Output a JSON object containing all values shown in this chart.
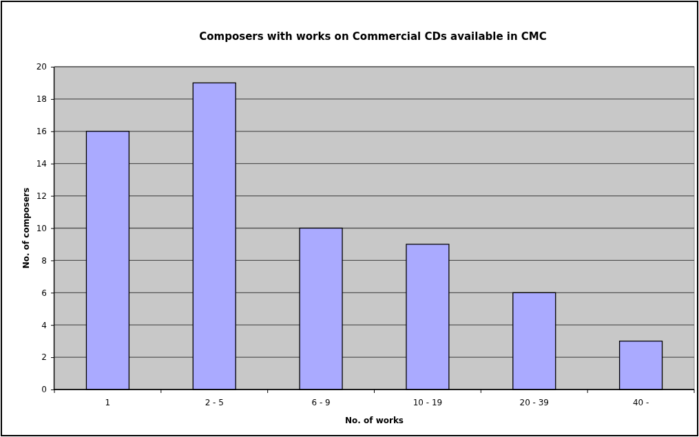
{
  "chart_data": {
    "type": "bar",
    "title": "Composers with works on Commercial CDs available in CMC",
    "xlabel": "No. of works",
    "ylabel": "No. of composers",
    "categories": [
      "1",
      "2 - 5",
      "6 - 9",
      "10 - 19",
      "20 - 39",
      "40 -"
    ],
    "values": [
      16,
      19,
      10,
      9,
      6,
      3
    ],
    "color": "#aaaaff",
    "ylim": [
      0,
      20
    ],
    "yticks": [
      0,
      2,
      4,
      6,
      8,
      10,
      12,
      14,
      16,
      18,
      20
    ],
    "grid": "y"
  }
}
